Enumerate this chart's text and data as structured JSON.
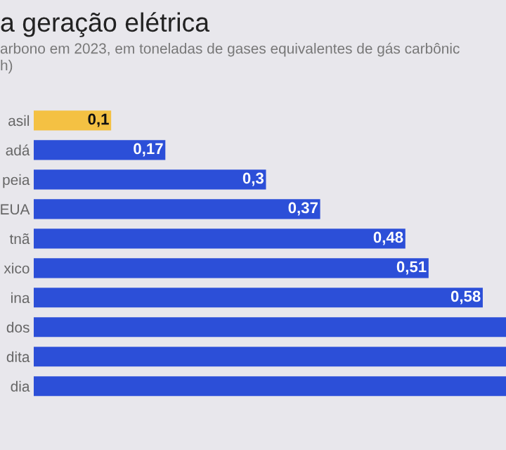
{
  "chart_data": {
    "type": "bar",
    "orientation": "horizontal",
    "title": "a geração elétrica",
    "subtitle": "arbono em 2023, em toneladas de gases equivalentes de gás carbônic\nh)",
    "categories": [
      "asil",
      "adá",
      "peia",
      "EUA",
      "tnã",
      "xico",
      "ina",
      "dos",
      "dita",
      "dia"
    ],
    "values": [
      0.1,
      0.17,
      0.3,
      0.37,
      0.48,
      0.51,
      0.58,
      0.61,
      0.61,
      0.61
    ],
    "value_labels": [
      "0,1",
      "0,17",
      "0,3",
      "0,37",
      "0,48",
      "0,51",
      "0,58",
      null,
      null,
      null
    ],
    "colors": [
      "#f4c143",
      "#2c4fd8",
      "#2c4fd8",
      "#2c4fd8",
      "#2c4fd8",
      "#2c4fd8",
      "#2c4fd8",
      "#2c4fd8",
      "#2c4fd8",
      "#2c4fd8"
    ],
    "xlim": [
      0,
      0.61
    ],
    "grid": false,
    "legend": false
  }
}
